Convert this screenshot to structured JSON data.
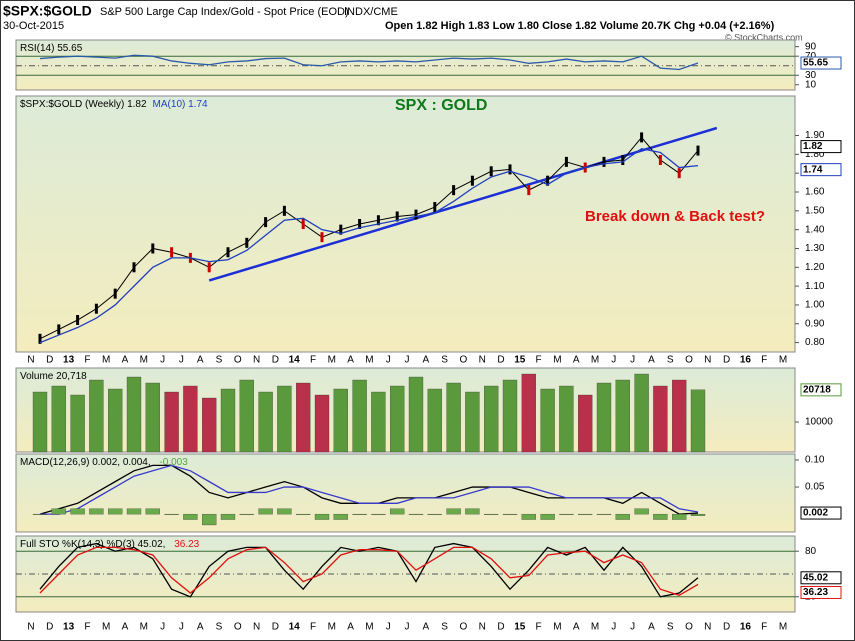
{
  "header": {
    "symbol": "$SPX:$GOLD",
    "description": "S&P 500 Large Cap Index/Gold - Spot Price (EOD)",
    "exchange": "INDX/CME",
    "date": "30-Oct-2015",
    "quote": "Open 1.82  High 1.83  Low 1.80  Close 1.82  Volume 20.7K  Chg +0.04 (+2.16%)",
    "watermark": "© StockCharts.com"
  },
  "chart_data": [
    {
      "type": "line",
      "title_parts": [
        {
          "text": "$SPX:$GOLD (Weekly) 1.82",
          "color": "#000000"
        },
        {
          "text": "MA(10) 1.74",
          "color": "#1f3fbf"
        }
      ],
      "categories": [
        "N",
        "D",
        "13",
        "F",
        "M",
        "A",
        "M",
        "J",
        "J",
        "A",
        "S",
        "O",
        "N",
        "D",
        "14",
        "F",
        "M",
        "A",
        "M",
        "J",
        "J",
        "A",
        "S",
        "O",
        "N",
        "D",
        "15",
        "F",
        "M",
        "A",
        "M",
        "J",
        "J",
        "A",
        "S",
        "O",
        "N",
        "D",
        "16",
        "F",
        "M"
      ],
      "ylim": [
        0.75,
        2.11
      ],
      "yticks": [
        {
          "value": 0.8,
          "label": "0.80"
        },
        {
          "value": 0.9,
          "label": "0.90"
        },
        {
          "value": 1.0,
          "label": "1.00"
        },
        {
          "value": 1.1,
          "label": "1.10"
        },
        {
          "value": 1.2,
          "label": "1.20"
        },
        {
          "value": 1.3,
          "label": "1.30"
        },
        {
          "value": 1.4,
          "label": "1.40"
        },
        {
          "value": 1.5,
          "label": "1.50"
        },
        {
          "value": 1.6,
          "label": "1.60"
        },
        {
          "value": 1.7,
          "label": "1.70"
        },
        {
          "value": 1.8,
          "label": "1.80"
        },
        {
          "value": 1.9,
          "label": "1.90"
        }
      ],
      "up_color": "#000000",
      "down_color": "#cc0000",
      "series": [
        {
          "name": "$SPX:$GOLD",
          "color": "#000000",
          "last_box": true,
          "values": [
            0.82,
            0.87,
            0.92,
            0.98,
            1.06,
            1.2,
            1.3,
            1.28,
            1.25,
            1.2,
            1.28,
            1.33,
            1.44,
            1.5,
            1.43,
            1.36,
            1.4,
            1.43,
            1.45,
            1.47,
            1.48,
            1.52,
            1.61,
            1.66,
            1.71,
            1.72,
            1.61,
            1.66,
            1.76,
            1.73,
            1.76,
            1.77,
            1.89,
            1.77,
            1.7,
            1.82,
            null,
            null,
            null,
            null,
            null
          ]
        },
        {
          "name": "MA(10)",
          "color": "#1f3fbf",
          "last_box": true,
          "values": [
            0.8,
            0.84,
            0.88,
            0.93,
            1.0,
            1.1,
            1.2,
            1.25,
            1.25,
            1.23,
            1.24,
            1.29,
            1.37,
            1.45,
            1.46,
            1.4,
            1.38,
            1.41,
            1.43,
            1.45,
            1.47,
            1.49,
            1.55,
            1.62,
            1.68,
            1.71,
            1.68,
            1.64,
            1.7,
            1.73,
            1.75,
            1.76,
            1.83,
            1.81,
            1.73,
            1.74,
            null,
            null,
            null,
            null,
            null
          ]
        }
      ],
      "trendline": {
        "color": "#1c2fd6",
        "values": [
          null,
          null,
          null,
          null,
          null,
          null,
          null,
          null,
          null,
          1.13,
          1.16,
          1.19,
          1.22,
          1.25,
          1.28,
          1.31,
          1.34,
          1.37,
          1.4,
          1.43,
          1.46,
          1.49,
          1.52,
          1.55,
          1.58,
          1.61,
          1.64,
          1.67,
          1.7,
          1.73,
          1.76,
          1.79,
          1.82,
          1.85,
          1.88,
          1.91,
          1.94,
          null,
          null,
          null,
          null
        ]
      },
      "annotations": [
        {
          "text": "SPX : GOLD",
          "color": "#0f7a1a"
        },
        {
          "text": "Break down & Back test?",
          "color": "#e01010"
        }
      ]
    },
    {
      "type": "bar",
      "title_parts": [
        {
          "text": "Volume 20,718",
          "color": "#000000"
        }
      ],
      "ylim": [
        0,
        28000
      ],
      "yticks": [
        10000
      ],
      "up_color": "#5a9a3c",
      "down_color": "#b8304a",
      "series": [
        {
          "name": "Volume",
          "color": "#5a9a3c",
          "last_box": true,
          "values": [
            20000,
            22000,
            19000,
            24000,
            21000,
            25000,
            23000,
            20000,
            22000,
            18000,
            21000,
            24000,
            20000,
            22000,
            23000,
            19000,
            21000,
            24000,
            20000,
            22000,
            25000,
            21000,
            23000,
            20000,
            22000,
            24000,
            26000,
            21000,
            22000,
            19000,
            23000,
            24000,
            26000,
            22000,
            24000,
            20718,
            null,
            null,
            null,
            null,
            null
          ]
        }
      ]
    },
    {
      "type": "line",
      "title_parts": [
        {
          "text": "RSI(14) 55.65",
          "color": "#000000"
        }
      ],
      "ylim": [
        -1,
        104
      ],
      "yticks": [
        10,
        30,
        70,
        90
      ],
      "hlines": [
        30,
        70
      ],
      "midline": 50,
      "series": [
        {
          "name": "RSI(14)",
          "color": "#2a5aa8",
          "last_box": true,
          "values": [
            65,
            68,
            70,
            68,
            66,
            72,
            70,
            60,
            55,
            52,
            58,
            60,
            65,
            66,
            52,
            50,
            58,
            60,
            58,
            60,
            58,
            62,
            66,
            64,
            66,
            62,
            55,
            58,
            64,
            58,
            60,
            58,
            70,
            45,
            42,
            55.65,
            null,
            null,
            null,
            null,
            null
          ]
        }
      ]
    },
    {
      "type": "line",
      "title_parts": [
        {
          "text": "MACD(12,26,9) 0.002, 0.004, ",
          "color": "#000000"
        },
        {
          "text": "-0.003",
          "color": "#4caa3a"
        }
      ],
      "ylim": [
        -0.033,
        0.111
      ],
      "yticks": [
        {
          "value": 0.1,
          "label": "0.10"
        },
        {
          "value": 0.05,
          "label": "0.05"
        }
      ],
      "series": [
        {
          "name": "MACD",
          "color": "#000000",
          "last_box": true,
          "values": [
            0.0,
            0.01,
            0.02,
            0.04,
            0.06,
            0.08,
            0.09,
            0.09,
            0.07,
            0.04,
            0.03,
            0.04,
            0.05,
            0.06,
            0.05,
            0.03,
            0.02,
            0.02,
            0.02,
            0.03,
            0.03,
            0.03,
            0.04,
            0.05,
            0.05,
            0.05,
            0.04,
            0.03,
            0.03,
            0.03,
            0.03,
            0.02,
            0.04,
            0.02,
            0.0,
            0.002,
            null,
            null,
            null,
            null,
            null
          ]
        },
        {
          "name": "Signal",
          "color": "#3a3acc",
          "values": [
            0.0,
            0.0,
            0.01,
            0.03,
            0.05,
            0.07,
            0.08,
            0.09,
            0.08,
            0.06,
            0.04,
            0.04,
            0.04,
            0.05,
            0.05,
            0.04,
            0.03,
            0.02,
            0.02,
            0.02,
            0.03,
            0.03,
            0.03,
            0.04,
            0.05,
            0.05,
            0.05,
            0.04,
            0.03,
            0.03,
            0.03,
            0.03,
            0.03,
            0.03,
            0.01,
            0.004,
            null,
            null,
            null,
            null,
            null
          ]
        },
        {
          "name": "Histogram",
          "color": "#6aaa4a",
          "style": "histogram",
          "values": [
            0.0,
            0.01,
            0.01,
            0.01,
            0.01,
            0.01,
            0.01,
            0.0,
            -0.01,
            -0.02,
            -0.01,
            0.0,
            0.01,
            0.01,
            0.0,
            -0.01,
            -0.01,
            0.0,
            0.0,
            0.01,
            0.0,
            0.0,
            0.01,
            0.01,
            0.0,
            0.0,
            -0.01,
            -0.01,
            0.0,
            0.0,
            0.0,
            -0.01,
            0.01,
            -0.01,
            -0.01,
            -0.003,
            null,
            null,
            null,
            null,
            null
          ]
        }
      ]
    },
    {
      "type": "line",
      "title_parts": [
        {
          "text": "Full STO %K(14,3) %D(3) 45.02, ",
          "color": "#000000"
        },
        {
          "text": "36.23",
          "color": "#e01010"
        }
      ],
      "ylim": [
        0,
        100
      ],
      "yticks": [
        20,
        80
      ],
      "hlines": [
        20,
        80
      ],
      "midline": 50,
      "series": [
        {
          "name": "%K",
          "color": "#000000",
          "last_box": true,
          "values": [
            30,
            60,
            85,
            90,
            80,
            85,
            70,
            30,
            20,
            60,
            80,
            85,
            85,
            55,
            30,
            60,
            85,
            80,
            85,
            80,
            40,
            85,
            90,
            85,
            60,
            30,
            55,
            85,
            75,
            85,
            55,
            85,
            60,
            20,
            25,
            45.02,
            null,
            null,
            null,
            null,
            null
          ]
        },
        {
          "name": "%D",
          "color": "#e01010",
          "last_box": true,
          "values": [
            25,
            50,
            75,
            85,
            85,
            82,
            75,
            45,
            25,
            45,
            70,
            82,
            85,
            65,
            40,
            50,
            75,
            82,
            82,
            80,
            55,
            70,
            85,
            85,
            70,
            45,
            48,
            75,
            78,
            80,
            65,
            75,
            65,
            30,
            22,
            36.23,
            null,
            null,
            null,
            null,
            null
          ]
        }
      ]
    }
  ]
}
